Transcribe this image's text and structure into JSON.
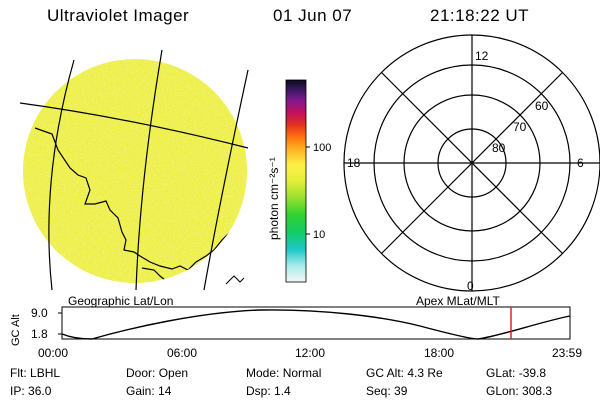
{
  "header": {
    "instrument": "Ultraviolet Imager",
    "date": "01 Jun 07",
    "time": "21:18:22 UT"
  },
  "image_panel": {
    "label": "Geographic Lat/Lon"
  },
  "colorbar": {
    "unit_label": "photon cm⁻²s⁻¹",
    "ticks": [
      "100",
      "10"
    ]
  },
  "polar_plot": {
    "label": "Apex MLat/MLT",
    "mlt_labels": {
      "top": "12",
      "right": "6",
      "bottom": "0",
      "left": "18"
    },
    "lat_labels": [
      "60",
      "70",
      "80"
    ]
  },
  "altitude_plot": {
    "ylabel": "GC Alt",
    "yticks": [
      "9.0",
      "1.8"
    ],
    "xticks": [
      "00:00",
      "06:00",
      "12:00",
      "18:00",
      "23:59"
    ]
  },
  "status": [
    {
      "label": "Flt:",
      "value": "LBHL"
    },
    {
      "label": "Door:",
      "value": "Open"
    },
    {
      "label": "Mode:",
      "value": "Normal"
    },
    {
      "label": "GC Alt:",
      "value": "4.3 Re"
    },
    {
      "label": "GLat:",
      "value": "-39.8"
    },
    {
      "label": "IP:",
      "value": "36.0"
    },
    {
      "label": "Gain:",
      "value": "14"
    },
    {
      "label": "Dsp:",
      "value": "1.4"
    },
    {
      "label": "Seq:",
      "value": "39"
    },
    {
      "label": "GLon:",
      "value": "308.3"
    }
  ],
  "colors": {
    "image_fill": "#eef04a",
    "curve": "#000000",
    "marker": "#d81818"
  }
}
